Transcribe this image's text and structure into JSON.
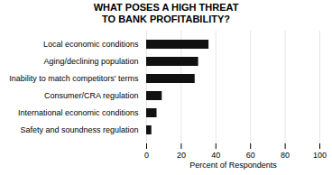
{
  "chart_data": {
    "type": "bar",
    "title": "WHAT POSES A HIGH THREAT\nTO BANK PROFITABILITY?",
    "orientation": "horizontal",
    "categories": [
      "Safety and soundness regulation",
      "International economic conditions",
      "Consumer/CRA regulation",
      "Inability to match competitors' terms",
      "Aging/declining population",
      "Local economic conditions"
    ],
    "values": [
      3,
      6,
      9,
      28,
      30,
      36
    ],
    "color": "#111111",
    "xlabel": "Percent of Respondents",
    "xlim": [
      0,
      100
    ],
    "xticks": [
      0,
      20,
      40,
      60,
      80,
      100
    ],
    "grid": true
  }
}
